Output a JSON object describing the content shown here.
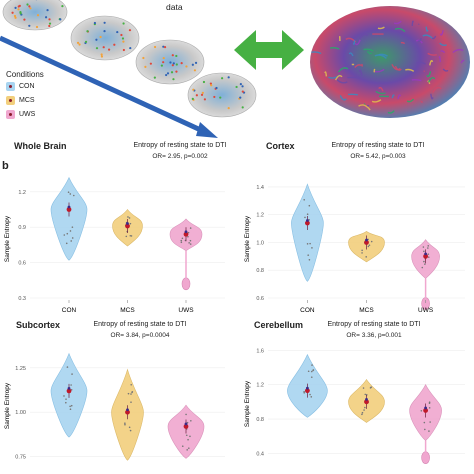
{
  "header_caption": "data",
  "legend": {
    "title": "Conditions",
    "items": [
      {
        "label": "CON",
        "color": "#a8d4f0"
      },
      {
        "label": "MCS",
        "color": "#f2cf7d"
      },
      {
        "label": "UWS",
        "color": "#f0a7cf"
      }
    ]
  },
  "section_letter": "b",
  "colors": {
    "CON": "#a8d4f0",
    "MCS": "#f2cf7d",
    "UWS": "#f0a7cf",
    "arrow_blue": "#2f63b5",
    "arrow_green": "#46b043",
    "mean_marker": "#3a2a8a",
    "median_marker": "#c0192a"
  },
  "panels": [
    {
      "id": "whole-brain",
      "label": "Whole Brain",
      "title": "Entropy of resting state to DTI",
      "or_text": "OR= 2.95, p=0.002",
      "ylabel": "Sample Entropy",
      "yticks": [
        "1.2",
        "0.9",
        "0.6",
        "0.3"
      ],
      "xticks": [
        "CON",
        "MCS",
        "UWS"
      ],
      "chart_data": {
        "type": "violin",
        "categories": [
          "CON",
          "MCS",
          "UWS"
        ],
        "medians": [
          1.05,
          0.91,
          0.84
        ],
        "ylim": [
          0.3,
          1.3
        ]
      }
    },
    {
      "id": "cortex",
      "label": "Cortex",
      "title": "Entropy of resting state to DTI",
      "or_text": "OR= 5.42, p=0.003",
      "ylabel": "Sample Entropy",
      "yticks": [
        "1.4",
        "1.2",
        "1.0",
        "0.8",
        "0.6"
      ],
      "xticks": [
        "CON",
        "MCS",
        "UWS"
      ],
      "chart_data": {
        "type": "violin",
        "categories": [
          "CON",
          "MCS",
          "UWS"
        ],
        "medians": [
          1.14,
          1.0,
          0.9
        ],
        "ylim": [
          0.6,
          1.45
        ]
      }
    },
    {
      "id": "subcortex",
      "label": "Subcortex",
      "title": "Entropy of resting state to DTI",
      "or_text": "OR= 3.84, p=0.0004",
      "ylabel": "Sample Entropy",
      "yticks": [
        "1.25",
        "1.00",
        "0.75"
      ],
      "xticks": [],
      "chart_data": {
        "type": "violin",
        "categories": [
          "CON",
          "MCS",
          "UWS"
        ],
        "medians": [
          1.12,
          1.0,
          0.92
        ],
        "ylim": [
          0.72,
          1.35
        ]
      }
    },
    {
      "id": "cerebellum",
      "label": "Cerebellum",
      "title": "Entropy of resting state to DTI",
      "or_text": "OR= 3.36, p=0.001",
      "ylabel": "Sample Entropy",
      "yticks": [
        "1.6",
        "1.2",
        "0.8",
        "0.4"
      ],
      "xticks": [],
      "chart_data": {
        "type": "violin",
        "categories": [
          "CON",
          "MCS",
          "UWS"
        ],
        "medians": [
          1.13,
          1.0,
          0.9
        ],
        "ylim": [
          0.3,
          1.65
        ]
      }
    }
  ]
}
